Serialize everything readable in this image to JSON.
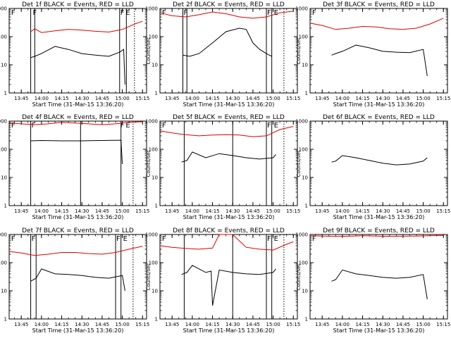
{
  "chart_data": [
    {
      "type": "line",
      "title": "Det 1f BLACK = Events, RED = LLD",
      "xlabel": "Start Time (31-Mar-15 13:36:20)",
      "ylabel": "Counts/sec",
      "yscale": "log",
      "ylim": [
        1,
        1000
      ],
      "xlim": [
        "13:36",
        "15:18"
      ],
      "xticks": [
        "13:45",
        "14:00",
        "14:15",
        "14:30",
        "14:45",
        "15:00",
        "15:15"
      ],
      "yticks": [
        "1",
        "10",
        "100",
        "1000"
      ],
      "flag_lines": [
        "13:52",
        "13:55",
        "14:58",
        "15:03"
      ],
      "dotted_lines": [
        "15:09"
      ],
      "flag_labels": [
        {
          "time": "13:37",
          "label": "F"
        },
        {
          "time": "13:53",
          "label": "F"
        },
        {
          "time": "14:58",
          "label": "F"
        },
        {
          "time": "15:02",
          "label": "E"
        }
      ],
      "series": [
        {
          "name": "BLACK",
          "color": "#000000",
          "x": [
            "13:52",
            "13:55",
            "14:00",
            "14:10",
            "14:20",
            "14:30",
            "14:40",
            "14:50",
            "14:58",
            "15:01",
            "15:02"
          ],
          "y": [
            18,
            20,
            25,
            45,
            35,
            25,
            22,
            20,
            28,
            35,
            2
          ]
        },
        {
          "name": "RED",
          "color": "#dd0000",
          "x": [
            "13:52",
            "13:55",
            "14:00",
            "14:10",
            "14:20",
            "14:30",
            "14:40",
            "14:50",
            "15:00",
            "15:10",
            "15:15"
          ],
          "y": [
            150,
            190,
            140,
            160,
            180,
            170,
            155,
            145,
            180,
            290,
            350
          ]
        }
      ]
    },
    {
      "type": "line",
      "title": "Det 2f BLACK = Events, RED = LLD",
      "xlabel": "Start Time (31-Mar-15 13:36:20)",
      "ylabel": "Counts/sec",
      "yscale": "log",
      "ylim": [
        1,
        1000
      ],
      "xlim": [
        "13:36",
        "15:18"
      ],
      "xticks": [
        "13:45",
        "14:00",
        "14:15",
        "14:30",
        "14:45",
        "15:00",
        "15:15"
      ],
      "yticks": [
        "1",
        "10",
        "100",
        "1000"
      ],
      "flag_lines": [
        "13:53",
        "13:56",
        "14:55",
        "14:59"
      ],
      "dotted_lines": [
        "15:08"
      ],
      "flag_labels": [
        {
          "time": "13:37",
          "label": "F"
        },
        {
          "time": "13:53",
          "label": "F"
        },
        {
          "time": "14:55",
          "label": "F"
        },
        {
          "time": "15:00",
          "label": "E"
        }
      ],
      "series": [
        {
          "name": "BLACK",
          "color": "#000000",
          "x": [
            "13:53",
            "13:58",
            "14:05",
            "14:15",
            "14:25",
            "14:35",
            "14:40",
            "14:45",
            "14:50",
            "14:55",
            "14:59"
          ],
          "y": [
            22,
            20,
            25,
            60,
            150,
            200,
            180,
            60,
            35,
            25,
            20
          ]
        },
        {
          "name": "RED",
          "color": "#dd0000",
          "x": [
            "13:36",
            "13:45",
            "13:55",
            "14:05",
            "14:15",
            "14:25",
            "14:35",
            "14:45",
            "14:55",
            "15:05",
            "15:15"
          ],
          "y": [
            700,
            550,
            500,
            600,
            750,
            650,
            500,
            450,
            500,
            700,
            800
          ]
        }
      ]
    },
    {
      "type": "line",
      "title": "Det 3f BLACK = Events, RED = LLD",
      "xlabel": "Start Time (31-Mar-15 13:36:20)",
      "ylabel": "Counts/sec",
      "yscale": "log",
      "ylim": [
        1,
        1000
      ],
      "xlim": [
        "13:36",
        "15:18"
      ],
      "xticks": [
        "13:45",
        "14:00",
        "14:15",
        "14:30",
        "14:45",
        "15:00",
        "15:15"
      ],
      "yticks": [
        "1",
        "10",
        "100",
        "1000"
      ],
      "flag_lines": [],
      "dotted_lines": [],
      "flag_labels": [
        {
          "time": "13:37",
          "label": "F"
        }
      ],
      "series": [
        {
          "name": "BLACK",
          "color": "#000000",
          "x": [
            "13:52",
            "13:55",
            "14:00",
            "14:10",
            "14:20",
            "14:30",
            "14:40",
            "14:50",
            "15:00",
            "15:03"
          ],
          "y": [
            22,
            25,
            30,
            50,
            40,
            30,
            28,
            27,
            35,
            4
          ]
        },
        {
          "name": "RED",
          "color": "#dd0000",
          "x": [
            "13:36",
            "13:45",
            "13:55",
            "14:05",
            "14:15",
            "14:25",
            "14:35",
            "14:45",
            "14:55",
            "15:05",
            "15:15"
          ],
          "y": [
            300,
            250,
            180,
            200,
            230,
            220,
            190,
            180,
            200,
            280,
            450
          ]
        }
      ]
    },
    {
      "type": "line",
      "title": "Det 4f BLACK = Events, RED = LLD",
      "xlabel": "Start Time (31-Mar-15 13:36:20)",
      "ylabel": "Counts/sec",
      "yscale": "log",
      "ylim": [
        1,
        1000
      ],
      "xlim": [
        "13:36",
        "15:18"
      ],
      "xticks": [
        "13:45",
        "14:00",
        "14:15",
        "14:30",
        "14:45",
        "15:00",
        "15:15"
      ],
      "yticks": [
        "1",
        "10",
        "100",
        "1000"
      ],
      "flag_lines": [
        "13:52",
        "14:29",
        "14:59"
      ],
      "dotted_lines": [
        "15:08"
      ],
      "flag_labels": [
        {
          "time": "13:37",
          "label": "F"
        },
        {
          "time": "13:52",
          "label": "F"
        },
        {
          "time": "14:58",
          "label": "F"
        },
        {
          "time": "15:02",
          "label": "E"
        }
      ],
      "series": [
        {
          "name": "BLACK",
          "color": "#000000",
          "x": [
            "13:52",
            "14:00",
            "14:15",
            "14:30",
            "14:45",
            "14:59",
            "15:00"
          ],
          "y": [
            200,
            205,
            200,
            200,
            205,
            210,
            30
          ]
        },
        {
          "name": "RED",
          "color": "#dd0000",
          "x": [
            "13:36",
            "13:45",
            "13:55",
            "14:05",
            "14:15",
            "14:25",
            "14:35",
            "14:45",
            "14:55",
            "15:05",
            "15:15"
          ],
          "y": [
            850,
            800,
            750,
            800,
            900,
            850,
            800,
            750,
            800,
            900,
            950
          ]
        }
      ]
    },
    {
      "type": "line",
      "title": "Det 5f BLACK = Events, RED = LLD",
      "xlabel": "Start Time (31-Mar-15 13:36:20)",
      "ylabel": "Counts/sec",
      "yscale": "log",
      "ylim": [
        1,
        1000
      ],
      "xlim": [
        "13:36",
        "15:18"
      ],
      "xticks": [
        "13:45",
        "14:00",
        "14:15",
        "14:30",
        "14:45",
        "15:00",
        "15:15"
      ],
      "yticks": [
        "1",
        "10",
        "100",
        "1000"
      ],
      "flag_lines": [
        "13:54",
        "14:30",
        "14:55",
        "14:59"
      ],
      "dotted_lines": [
        "15:08"
      ],
      "flag_labels": [
        {
          "time": "13:37",
          "label": "F"
        },
        {
          "time": "14:55",
          "label": "F"
        },
        {
          "time": "15:00",
          "label": "E"
        }
      ],
      "series": [
        {
          "name": "BLACK",
          "color": "#000000",
          "x": [
            "13:52",
            "13:56",
            "14:00",
            "14:10",
            "14:20",
            "14:30",
            "14:40",
            "14:50",
            "15:00",
            "15:02"
          ],
          "y": [
            35,
            40,
            80,
            50,
            70,
            60,
            50,
            45,
            50,
            65
          ]
        },
        {
          "name": "RED",
          "color": "#dd0000",
          "x": [
            "13:36",
            "13:45",
            "13:55",
            "14:05",
            "14:15",
            "14:25",
            "14:35",
            "14:45",
            "14:55",
            "15:05",
            "15:15"
          ],
          "y": [
            450,
            380,
            330,
            300,
            320,
            330,
            320,
            280,
            300,
            500,
            650
          ]
        }
      ]
    },
    {
      "type": "line",
      "title": "Det 6f BLACK = Events, RED = LLD",
      "xlabel": "Start Time (31-Mar-15 13:36:20)",
      "ylabel": "Counts/sec",
      "yscale": "log",
      "ylim": [
        1,
        1000
      ],
      "xlim": [
        "13:36",
        "15:18"
      ],
      "xticks": [
        "13:45",
        "14:00",
        "14:15",
        "14:30",
        "14:45",
        "15:00",
        "15:15"
      ],
      "yticks": [
        "1",
        "10",
        "100",
        "1000"
      ],
      "flag_lines": [],
      "dotted_lines": [],
      "flag_labels": [],
      "series": [
        {
          "name": "BLACK",
          "color": "#000000",
          "x": [
            "13:52",
            "13:55",
            "14:00",
            "14:10",
            "14:20",
            "14:30",
            "14:40",
            "14:50",
            "15:00",
            "15:03"
          ],
          "y": [
            35,
            38,
            60,
            50,
            40,
            32,
            28,
            30,
            38,
            50
          ]
        },
        {
          "name": "RED",
          "color": "#dd0000",
          "x": [],
          "y": []
        }
      ]
    },
    {
      "type": "line",
      "title": "Det 7f BLACK = Events, RED = LLD",
      "xlabel": "Start Time (31-Mar-15 13:36:20)",
      "ylabel": "Counts/sec",
      "yscale": "log",
      "ylim": [
        1,
        1000
      ],
      "xlim": [
        "13:36",
        "15:18"
      ],
      "xticks": [
        "13:45",
        "14:00",
        "14:15",
        "14:30",
        "14:45",
        "15:00",
        "15:15"
      ],
      "yticks": [
        "1",
        "10",
        "100",
        "1000"
      ],
      "flag_lines": [
        "13:52",
        "13:56",
        "14:55",
        "14:59"
      ],
      "dotted_lines": [
        "15:08"
      ],
      "flag_labels": [
        {
          "time": "13:37",
          "label": "F"
        },
        {
          "time": "13:52",
          "label": "F"
        },
        {
          "time": "14:55",
          "label": "F"
        },
        {
          "time": "15:00",
          "label": "E"
        }
      ],
      "series": [
        {
          "name": "BLACK",
          "color": "#000000",
          "x": [
            "13:52",
            "13:56",
            "14:00",
            "14:10",
            "14:20",
            "14:30",
            "14:40",
            "14:50",
            "15:00",
            "15:02"
          ],
          "y": [
            22,
            28,
            60,
            40,
            38,
            35,
            30,
            28,
            35,
            10
          ]
        },
        {
          "name": "RED",
          "color": "#dd0000",
          "x": [
            "13:36",
            "13:45",
            "13:55",
            "14:05",
            "14:15",
            "14:25",
            "14:35",
            "14:45",
            "14:55",
            "15:05",
            "15:15"
          ],
          "y": [
            250,
            220,
            180,
            200,
            230,
            230,
            210,
            200,
            230,
            300,
            380
          ]
        }
      ]
    },
    {
      "type": "line",
      "title": "Det 8f BLACK = Events, RED = LLD",
      "xlabel": "Start Time (31-Mar-15 13:36:20)",
      "ylabel": "Counts/sec",
      "yscale": "log",
      "ylim": [
        1,
        1000
      ],
      "xlim": [
        "13:36",
        "15:18"
      ],
      "xticks": [
        "13:45",
        "14:00",
        "14:15",
        "14:30",
        "14:45",
        "15:00",
        "15:15"
      ],
      "yticks": [
        "1",
        "10",
        "100",
        "1000"
      ],
      "flag_lines": [
        "13:54",
        "14:30",
        "14:55",
        "14:59"
      ],
      "dotted_lines": [
        "15:08"
      ],
      "flag_labels": [
        {
          "time": "13:37",
          "label": "F"
        },
        {
          "time": "14:55",
          "label": "F"
        },
        {
          "time": "15:00",
          "label": "E"
        }
      ],
      "series": [
        {
          "name": "BLACK",
          "color": "#000000",
          "x": [
            "13:52",
            "13:56",
            "14:00",
            "14:10",
            "14:14",
            "14:15",
            "14:20",
            "14:30",
            "14:40",
            "14:50",
            "15:00",
            "15:02"
          ],
          "y": [
            38,
            45,
            80,
            45,
            50,
            3,
            55,
            45,
            40,
            38,
            45,
            60
          ]
        },
        {
          "name": "RED",
          "color": "#dd0000",
          "x": [
            "13:36",
            "13:45",
            "13:55",
            "14:05",
            "14:15",
            "14:20",
            "14:30",
            "14:40",
            "14:50",
            "15:00",
            "15:10",
            "15:15"
          ],
          "y": [
            400,
            350,
            320,
            300,
            330,
            1000,
            1000,
            350,
            300,
            280,
            450,
            550
          ]
        }
      ]
    },
    {
      "type": "line",
      "title": "Det 9f BLACK = Events, RED = LLD",
      "xlabel": "Start Time (31-Mar-15 13:36:20)",
      "ylabel": "Counts/sec",
      "yscale": "log",
      "ylim": [
        1,
        1000
      ],
      "xlim": [
        "13:36",
        "15:18"
      ],
      "xticks": [
        "13:45",
        "14:00",
        "14:15",
        "14:30",
        "14:45",
        "15:00",
        "15:15"
      ],
      "yticks": [
        "1",
        "10",
        "100",
        "1000"
      ],
      "flag_lines": [],
      "dotted_lines": [],
      "flag_labels": [
        {
          "time": "13:37",
          "label": "F"
        }
      ],
      "series": [
        {
          "name": "BLACK",
          "color": "#000000",
          "x": [
            "13:52",
            "13:55",
            "14:00",
            "14:10",
            "14:20",
            "14:30",
            "14:40",
            "14:50",
            "15:00",
            "15:03"
          ],
          "y": [
            22,
            25,
            55,
            40,
            35,
            30,
            28,
            30,
            38,
            5
          ]
        },
        {
          "name": "RED",
          "color": "#dd0000",
          "x": [
            "13:36",
            "13:45",
            "13:55",
            "14:05",
            "14:15",
            "14:25",
            "14:35",
            "14:45",
            "14:55",
            "15:05",
            "15:15"
          ],
          "y": [
            900,
            880,
            850,
            870,
            900,
            880,
            860,
            870,
            880,
            900,
            920
          ]
        }
      ]
    }
  ]
}
